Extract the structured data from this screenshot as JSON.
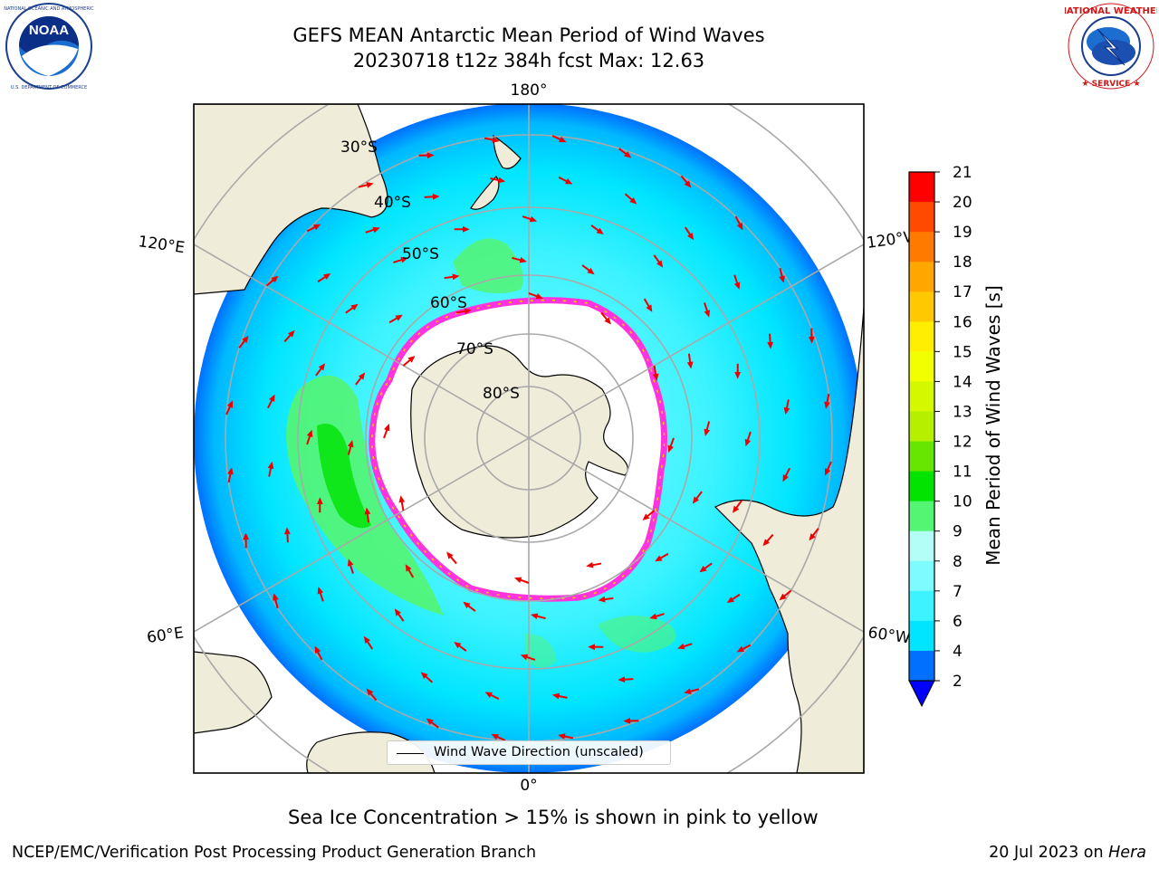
{
  "header": {
    "title_line1": "GEFS MEAN Antarctic Mean Period of Wind Waves",
    "title_line2": "20230718 t12z 384h fcst   Max: 12.63"
  },
  "logos": {
    "left": {
      "icon": "noaa-logo-icon",
      "text": "NOAA",
      "ring_text": "NATIONAL OCEANIC AND ATMOSPHERIC ADMINISTRATION · U.S. DEPARTMENT OF COMMERCE"
    },
    "right": {
      "icon": "nws-logo-icon",
      "ring_text": "NATIONAL WEATHER SERVICE"
    }
  },
  "map": {
    "longitude_labels": {
      "top": "180°",
      "bottom": "0°",
      "upper_left": "120°E",
      "upper_right": "120°W",
      "lower_left": "60°E",
      "lower_right": "60°W"
    },
    "latitude_labels": [
      "30°S",
      "40°S",
      "50°S",
      "60°S",
      "70°S",
      "80°S"
    ],
    "legend": "Wind Wave Direction (unscaled)",
    "colors": {
      "land": "#efedd9",
      "ocean_low": "#0070ff",
      "ocean_mid": "#00e5ff",
      "ocean_high": "#55ff88",
      "ice_edge": "#ff33dd",
      "arrow": "#ee0000"
    }
  },
  "colorbar": {
    "label": "Mean Period of Wind Waves [s]",
    "ticks": [
      "2",
      "4",
      "6",
      "7",
      "8",
      "9",
      "10",
      "11",
      "12",
      "13",
      "14",
      "15",
      "16",
      "17",
      "18",
      "19",
      "20",
      "21"
    ],
    "colors": [
      "#0070ff",
      "#00e5ff",
      "#3df3ff",
      "#7dfbff",
      "#b3fff7",
      "#53f572",
      "#00e400",
      "#66e600",
      "#b6f000",
      "#d4f800",
      "#f2ff00",
      "#ffee00",
      "#ffc800",
      "#ffa600",
      "#ff7b00",
      "#ff4a00",
      "#ff0000"
    ],
    "extend_color": "#0000ff"
  },
  "caption": "Sea Ice Concentration > 15% is shown in pink to yellow",
  "footer": {
    "left": "NCEP/EMC/Verification Post Processing Product Generation Branch",
    "right_date": "20 Jul 2023 on ",
    "right_machine": "Hera"
  }
}
